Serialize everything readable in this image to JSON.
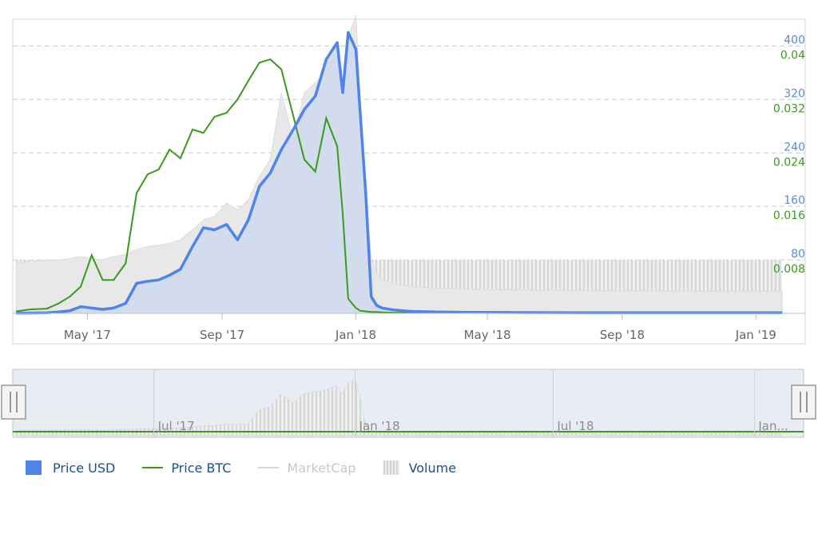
{
  "chart_data": {
    "type": "line",
    "title": "",
    "xlabel": "",
    "x_tick_labels": [
      "May '17",
      "Sep '17",
      "Jan '18",
      "May '18",
      "Sep '18",
      "Jan '19"
    ],
    "usd_axis": {
      "ticks": [
        "80",
        "160",
        "240",
        "320",
        "400"
      ],
      "range": [
        0,
        440
      ]
    },
    "btc_axis": {
      "ticks": [
        "0.008",
        "0.016",
        "0.024",
        "0.032",
        "0.04"
      ],
      "range": [
        0,
        0.044
      ]
    },
    "dates": [
      "2017-02-25",
      "2017-03-10",
      "2017-03-25",
      "2017-04-05",
      "2017-04-15",
      "2017-04-25",
      "2017-05-05",
      "2017-05-15",
      "2017-05-25",
      "2017-06-05",
      "2017-06-15",
      "2017-06-25",
      "2017-07-05",
      "2017-07-15",
      "2017-07-25",
      "2017-08-05",
      "2017-08-15",
      "2017-08-25",
      "2017-09-05",
      "2017-09-15",
      "2017-09-25",
      "2017-10-05",
      "2017-10-15",
      "2017-10-25",
      "2017-11-05",
      "2017-11-15",
      "2017-11-25",
      "2017-12-05",
      "2017-12-15",
      "2017-12-20",
      "2017-12-25",
      "2018-01-01",
      "2018-01-05",
      "2018-01-10",
      "2018-01-15",
      "2018-01-20",
      "2018-01-25",
      "2018-02-05",
      "2018-02-20",
      "2018-03-15",
      "2018-04-15",
      "2018-06-01",
      "2018-08-01",
      "2018-10-01",
      "2018-12-01",
      "2019-01-25"
    ],
    "series": [
      {
        "name": "Price USD",
        "axis": "usd",
        "color": "#4f84e8",
        "values": [
          0.5,
          0.5,
          0.8,
          2,
          4,
          10,
          8,
          6,
          8,
          15,
          45,
          48,
          50,
          57,
          66,
          100,
          128,
          125,
          133,
          110,
          140,
          190,
          210,
          245,
          275,
          305,
          325,
          380,
          405,
          330,
          420,
          395,
          300,
          180,
          25,
          12,
          8,
          5,
          3,
          2,
          1.5,
          1.2,
          1.0,
          1.0,
          0.8,
          0.8
        ]
      },
      {
        "name": "Price BTC",
        "axis": "btc",
        "color": "#3a9a1d",
        "values": [
          0.0003,
          0.0006,
          0.0007,
          0.0015,
          0.0025,
          0.004,
          0.0087,
          0.005,
          0.005,
          0.0075,
          0.018,
          0.0208,
          0.0215,
          0.0245,
          0.0232,
          0.0275,
          0.027,
          0.0294,
          0.03,
          0.032,
          0.0348,
          0.0375,
          0.038,
          0.0365,
          0.0295,
          0.023,
          0.0212,
          0.0292,
          0.025,
          0.015,
          0.0022,
          0.0008,
          0.0004,
          0.0003,
          0.0002,
          0.0002,
          0.00015,
          0.0001,
          0.0001,
          0.0001,
          0.0001,
          0.0001,
          0.0001,
          0.0001,
          0.0001,
          0.0001
        ]
      },
      {
        "name": "MarketCap",
        "axis": "usd",
        "color": "#d8d8d8",
        "values": [
          75,
          78,
          80,
          80,
          82,
          85,
          82,
          80,
          85,
          88,
          95,
          100,
          102,
          105,
          110,
          125,
          140,
          145,
          165,
          155,
          170,
          205,
          230,
          330,
          260,
          330,
          345,
          360,
          400,
          320,
          415,
          445,
          320,
          190,
          80,
          60,
          50,
          45,
          40,
          38,
          36,
          35,
          34,
          34,
          33,
          33
        ]
      },
      {
        "name": "Volume",
        "axis": "usd",
        "color": "#d4d4d4",
        "values": [
          80,
          80,
          80,
          80,
          80,
          80,
          80,
          80,
          80,
          80,
          80,
          80,
          80,
          80,
          80,
          80,
          80,
          80,
          80,
          80,
          80,
          80,
          80,
          80,
          80,
          80,
          80,
          80,
          80,
          80,
          80,
          80,
          80,
          80,
          80,
          80,
          80,
          80,
          80,
          80,
          80,
          80,
          80,
          80,
          80,
          80
        ]
      }
    ],
    "navigator_tick_labels": [
      "Jul '17",
      "Jan '18",
      "Jul '18",
      "Jan..."
    ],
    "legend": [
      {
        "label": "Price USD",
        "visible": true
      },
      {
        "label": "Price BTC",
        "visible": true
      },
      {
        "label": "MarketCap",
        "visible": false
      },
      {
        "label": "Volume",
        "visible": true
      }
    ]
  }
}
